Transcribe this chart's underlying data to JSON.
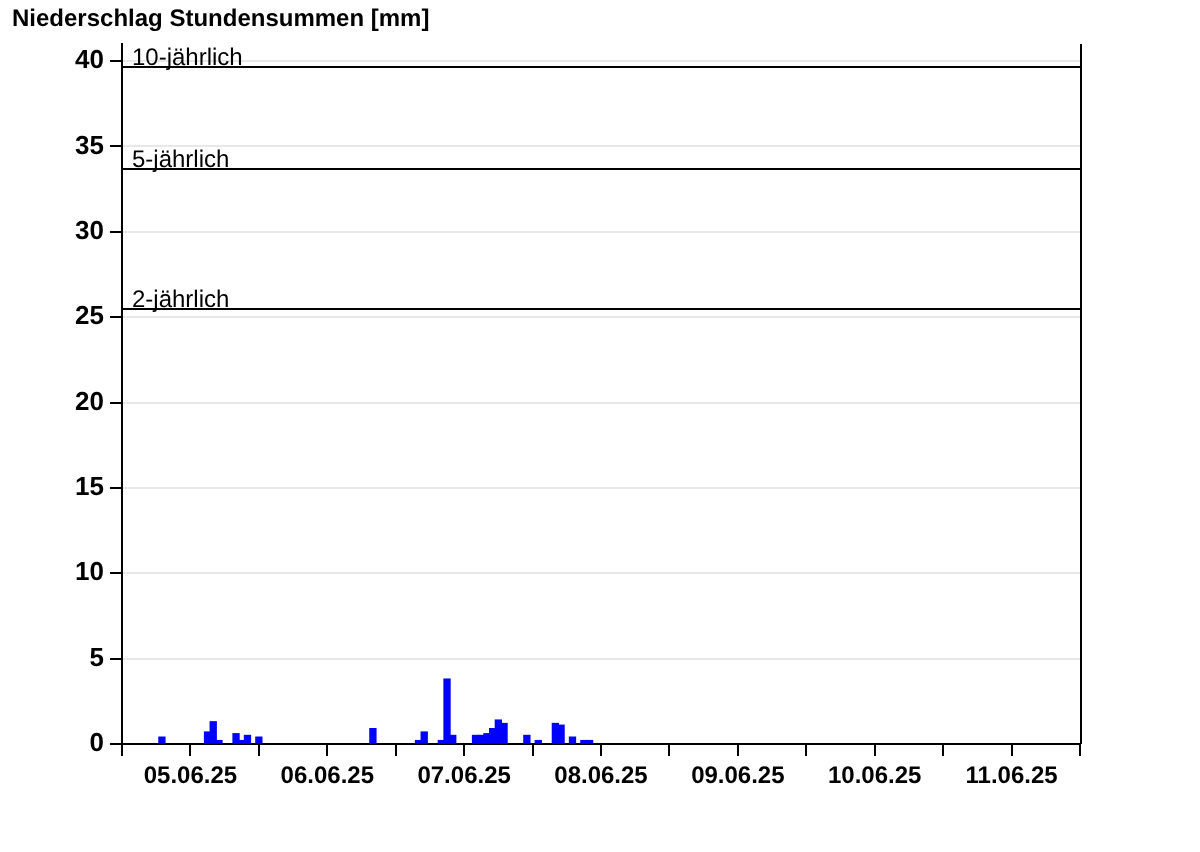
{
  "chart_data": {
    "type": "bar",
    "title": "Niederschlag Stundensummen [mm]",
    "x": [
      "--06-05T07:00",
      "--06-05T15:00",
      "--06-05T16:00",
      "--06-05T17:00",
      "--06-05T20:00",
      "--06-05T21:00",
      "--06-05T22:00",
      "--06-06T00:00",
      "--06-06T20:00",
      "--06-07T04:00",
      "--06-07T05:00",
      "--06-07T08:00",
      "--06-07T09:00",
      "--06-07T10:00",
      "--06-07T14:00",
      "--06-07T15:00",
      "--06-07T16:00",
      "--06-07T17:00",
      "--06-07T18:00",
      "--06-07T19:00",
      "--06-07T23:00",
      "--06-08T01:00",
      "--06-08T04:00",
      "--06-08T05:00",
      "--06-08T07:00",
      "--06-08T09:00",
      "--06-08T10:00"
    ],
    "values": [
      0.4,
      0.7,
      1.3,
      0.2,
      0.6,
      0.2,
      0.5,
      0.4,
      0.9,
      0.2,
      0.7,
      0.2,
      3.8,
      0.5,
      0.5,
      0.5,
      0.6,
      0.9,
      1.4,
      1.2,
      0.5,
      0.2,
      1.2,
      1.1,
      0.4,
      0.2,
      0.2
    ],
    "color": "#0000ff",
    "xlim": [
      "--06-05T00:00",
      "--06-12T00:00"
    ],
    "xticks": [
      {
        "value": "--06-05T00:00",
        "label": null
      },
      {
        "value": "--06-05T12:00",
        "label": "05.06.25"
      },
      {
        "value": "--06-06T00:00",
        "label": null
      },
      {
        "value": "--06-06T12:00",
        "label": "06.06.25"
      },
      {
        "value": "--06-07T00:00",
        "label": null
      },
      {
        "value": "--06-07T12:00",
        "label": "07.06.25"
      },
      {
        "value": "--06-08T00:00",
        "label": null
      },
      {
        "value": "--06-08T12:00",
        "label": "08.06.25"
      },
      {
        "value": "--06-09T00:00",
        "label": null
      },
      {
        "value": "--06-09T12:00",
        "label": "09.06.25"
      },
      {
        "value": "--06-10T00:00",
        "label": null
      },
      {
        "value": "--06-10T12:00",
        "label": "10.06.25"
      },
      {
        "value": "--06-11T00:00",
        "label": null
      },
      {
        "value": "--06-11T12:00",
        "label": "11.06.25"
      },
      {
        "value": "--06-12T00:00",
        "label": null
      }
    ],
    "ylim": [
      0,
      41
    ],
    "yticks": [
      0,
      5,
      10,
      15,
      20,
      25,
      30,
      35,
      40
    ],
    "grid": "y",
    "legend": false,
    "ref_lines": [
      {
        "axis": "y",
        "value": 39.7,
        "label": "10-jährlich",
        "color": "#000000"
      },
      {
        "axis": "y",
        "value": 33.7,
        "label": "5-jährlich",
        "color": "#000000"
      },
      {
        "axis": "y",
        "value": 25.5,
        "label": "2-jährlich",
        "color": "#000000"
      }
    ]
  }
}
